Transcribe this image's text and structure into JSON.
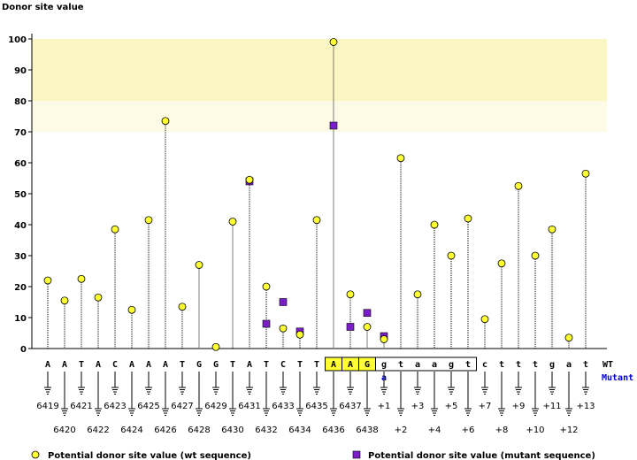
{
  "chart_data": {
    "type": "scatter",
    "title": "",
    "ylabel": "Donor site value",
    "xlabel": "",
    "ylim": [
      0,
      100
    ],
    "yticks": [
      0,
      10,
      20,
      30,
      40,
      50,
      60,
      70,
      80,
      90,
      100
    ],
    "grid": false,
    "legend_position": "bottom",
    "highlight_bands": [
      {
        "from": 80,
        "to": 100,
        "color": "#fbf7c4"
      },
      {
        "from": 70,
        "to": 80,
        "color": "#fdfbe6"
      }
    ],
    "row_labels": {
      "wt": "WT",
      "mutant": "Mutant"
    },
    "colors": {
      "wt_marker": "#ffff33",
      "mutant_marker": "#7a1fc7",
      "exon_box": "#ffff33",
      "mutant_text": "#0000cc"
    },
    "positions": [
      "6419",
      "6420",
      "6421",
      "6422",
      "6423",
      "6424",
      "6425",
      "6426",
      "6427",
      "6428",
      "6429",
      "6430",
      "6431",
      "6432",
      "6433",
      "6434",
      "6435",
      "6436",
      "6437",
      "6438",
      "+1",
      "+2",
      "+3",
      "+4",
      "+5",
      "+6",
      "+7",
      "+8",
      "+9",
      "+10",
      "+11",
      "+12",
      "+13"
    ],
    "bases": [
      "A",
      "A",
      "T",
      "A",
      "C",
      "A",
      "A",
      "A",
      "T",
      "G",
      "G",
      "T",
      "A",
      "T",
      "C",
      "T",
      "T",
      "A",
      "A",
      "G",
      "g",
      "t",
      "a",
      "a",
      "g",
      "t",
      "c",
      "t",
      "t",
      "t",
      "g",
      "a",
      "t"
    ],
    "mutant_bases": [
      null,
      null,
      null,
      null,
      null,
      null,
      null,
      null,
      null,
      null,
      null,
      null,
      null,
      null,
      null,
      null,
      null,
      null,
      null,
      null,
      "a",
      null,
      null,
      null,
      null,
      null,
      null,
      null,
      null,
      null,
      null,
      null,
      null
    ],
    "exon_highlight": [
      "6436",
      "6438"
    ],
    "boxed_region": [
      "6436",
      "+6"
    ],
    "series": [
      {
        "name": "Potential donor site value (wt sequence)",
        "marker": "circle",
        "values": [
          22,
          15.5,
          22.5,
          16.5,
          38.5,
          12.5,
          41.5,
          73.5,
          13.5,
          27,
          0.5,
          41,
          54.5,
          20,
          6.5,
          4.5,
          41.5,
          99,
          17.5,
          7,
          3,
          61.5,
          17.5,
          40,
          30,
          42,
          9.5,
          27.5,
          52.5,
          30,
          38.5,
          3.5,
          56.5
        ]
      },
      {
        "name": "Potential donor site value (mutant sequence)",
        "marker": "square",
        "values": [
          null,
          null,
          null,
          null,
          null,
          null,
          null,
          null,
          null,
          null,
          null,
          null,
          54,
          8,
          15,
          5.5,
          null,
          72,
          7,
          11.5,
          4,
          null,
          null,
          null,
          null,
          null,
          null,
          null,
          null,
          null,
          null,
          null,
          null
        ]
      }
    ]
  }
}
